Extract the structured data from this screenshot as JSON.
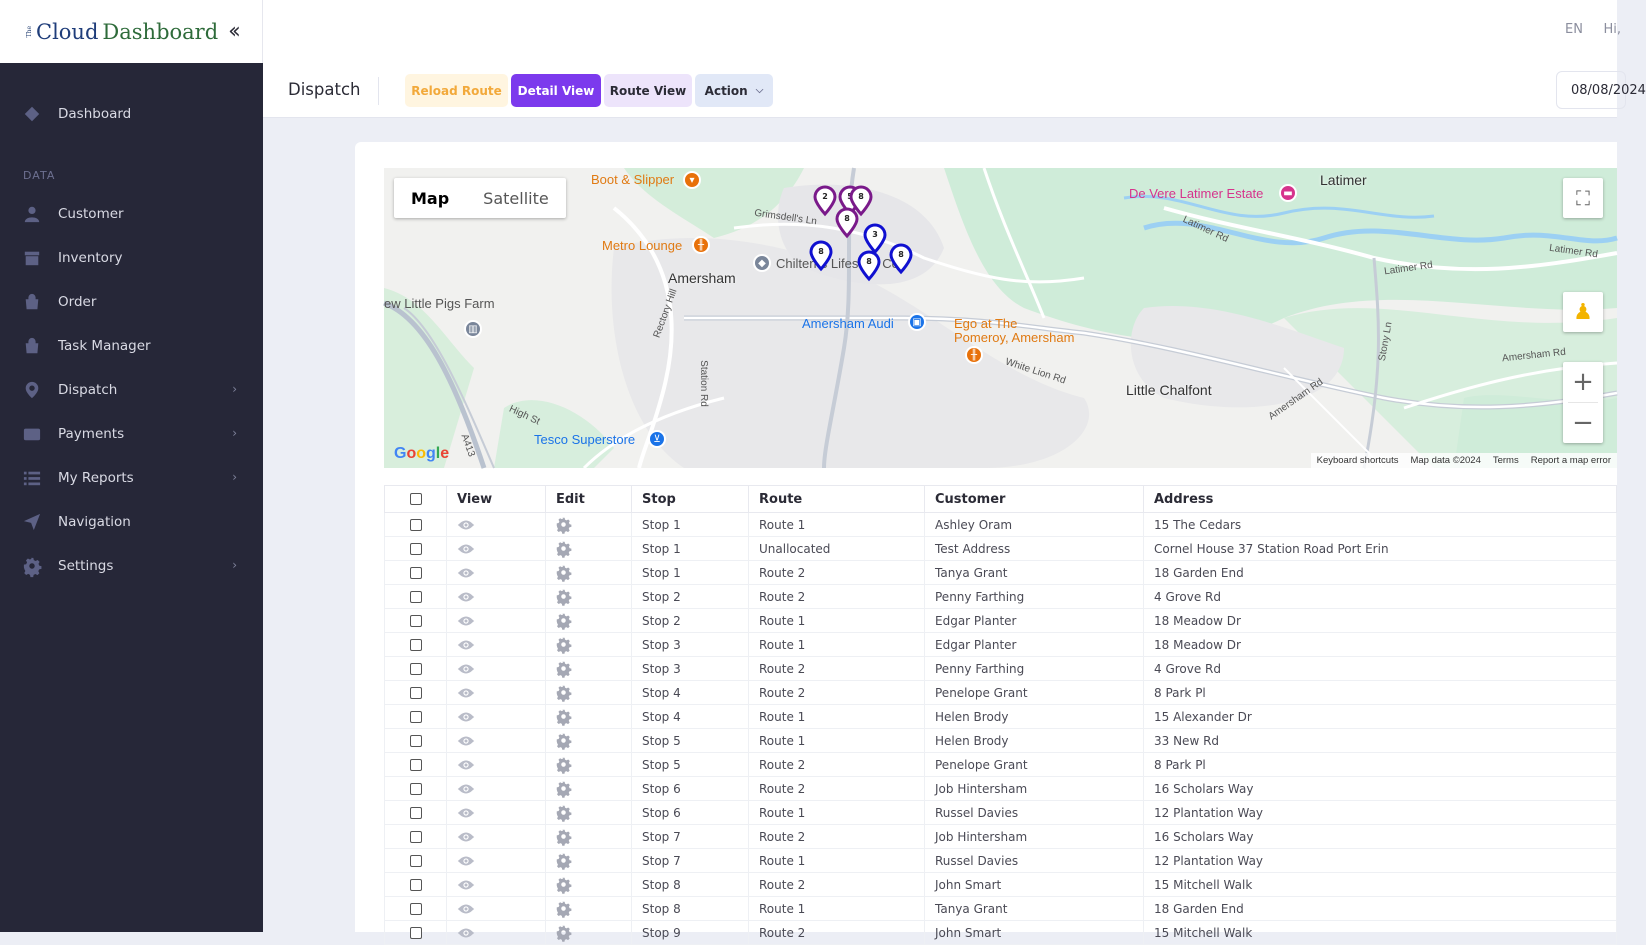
{
  "brand": {
    "prefix": "The",
    "name_part1": "Cloud",
    "name_part2": "Dashboard",
    "collapse_icon": "double-chevron-left-icon"
  },
  "header": {
    "language": "EN",
    "greeting": "Hi,"
  },
  "sidebar": {
    "items": [
      {
        "label": "Dashboard",
        "icon": "diamond-icon"
      },
      {
        "label": "Customer",
        "icon": "user-icon"
      },
      {
        "label": "Inventory",
        "icon": "box-icon"
      },
      {
        "label": "Order",
        "icon": "bag-icon"
      },
      {
        "label": "Task Manager",
        "icon": "bag-icon"
      },
      {
        "label": "Dispatch",
        "icon": "map-pin-icon"
      },
      {
        "label": "Payments",
        "icon": "wallet-icon"
      },
      {
        "label": "My Reports",
        "icon": "list-icon"
      },
      {
        "label": "Navigation",
        "icon": "send-icon"
      },
      {
        "label": "Settings",
        "icon": "gear-icon"
      }
    ],
    "section_data": "DATA"
  },
  "toolbar": {
    "title": "Dispatch",
    "reload_label": "Reload Route",
    "detail_label": "Detail View",
    "route_label": "Route View",
    "action_label": "Action",
    "date_value": "08/08/2024"
  },
  "map": {
    "type_map": "Map",
    "type_satellite": "Satellite",
    "google": "Google",
    "attribution": [
      "Keyboard shortcuts",
      "Map data ©2024",
      "Terms",
      "Report a map error"
    ],
    "places": {
      "latimer": "Latimer",
      "amersham": "Amersham",
      "little_chalfont": "Little Chalfont",
      "boot_slipper": "Boot & Slipper",
      "metro_lounge": "Metro Lounge",
      "de_vere": "De Vere Latimer Estate",
      "chilterns": "Chilterns Lifestyle Cen",
      "amersham_audi": "Amersham Audi",
      "ego_1": "Ego at The",
      "ego_2": "Pomeroy, Amersham",
      "tesco": "Tesco Superstore",
      "little_pigs": "ew Little Pigs Farm",
      "grimsdells": "Grimsdell's Ln",
      "latimer_rd1": "Latimer Rd",
      "latimer_rd2": "Latimer Rd",
      "latimer_rd3": "Latimer Rd",
      "rectory": "Rectory Hill",
      "station": "Station Rd",
      "white_lion": "White Lion Rd",
      "high_st": "High St",
      "a413": "A413",
      "amersham_rd1": "Amersham Rd",
      "amersham_rd2": "Amersham Rd",
      "stony": "Stony Ln"
    },
    "pins": [
      {
        "label": "2",
        "color": "#7a1a8a"
      },
      {
        "label": "5",
        "color": "#7a1a8a"
      },
      {
        "label": "8",
        "color": "#7a1a8a"
      },
      {
        "label": "8",
        "color": "#7a1a8a"
      },
      {
        "label": "3",
        "color": "#1010d0"
      },
      {
        "label": "8",
        "color": "#1010d0"
      },
      {
        "label": "8",
        "color": "#1010d0"
      },
      {
        "label": "8",
        "color": "#1010d0"
      }
    ]
  },
  "table": {
    "headers": [
      "View",
      "Edit",
      "Stop",
      "Route",
      "Customer",
      "Address"
    ],
    "rows": [
      {
        "stop": "Stop 1",
        "route": "Route 1",
        "customer": "Ashley Oram",
        "address": "15 The Cedars"
      },
      {
        "stop": "Stop 1",
        "route": "Unallocated",
        "customer": "Test Address",
        "address": "Cornel House 37 Station Road Port Erin"
      },
      {
        "stop": "Stop 1",
        "route": "Route 2",
        "customer": "Tanya Grant",
        "address": "18 Garden End"
      },
      {
        "stop": "Stop 2",
        "route": "Route 2",
        "customer": "Penny Farthing",
        "address": "4 Grove Rd"
      },
      {
        "stop": "Stop 2",
        "route": "Route 1",
        "customer": "Edgar Planter",
        "address": "18 Meadow Dr"
      },
      {
        "stop": "Stop 3",
        "route": "Route 1",
        "customer": "Edgar Planter",
        "address": "18 Meadow Dr"
      },
      {
        "stop": "Stop 3",
        "route": "Route 2",
        "customer": "Penny Farthing",
        "address": "4 Grove Rd"
      },
      {
        "stop": "Stop 4",
        "route": "Route 2",
        "customer": "Penelope Grant",
        "address": "8 Park Pl"
      },
      {
        "stop": "Stop 4",
        "route": "Route 1",
        "customer": "Helen Brody",
        "address": "15 Alexander Dr"
      },
      {
        "stop": "Stop 5",
        "route": "Route 1",
        "customer": "Helen Brody",
        "address": "33 New Rd"
      },
      {
        "stop": "Stop 5",
        "route": "Route 2",
        "customer": "Penelope Grant",
        "address": "8 Park Pl"
      },
      {
        "stop": "Stop 6",
        "route": "Route 2",
        "customer": "Job Hintersham",
        "address": "16 Scholars Way"
      },
      {
        "stop": "Stop 6",
        "route": "Route 1",
        "customer": "Russel Davies",
        "address": "12 Plantation Way"
      },
      {
        "stop": "Stop 7",
        "route": "Route 2",
        "customer": "Job Hintersham",
        "address": "16 Scholars Way"
      },
      {
        "stop": "Stop 7",
        "route": "Route 1",
        "customer": "Russel Davies",
        "address": "12 Plantation Way"
      },
      {
        "stop": "Stop 8",
        "route": "Route 2",
        "customer": "John Smart",
        "address": "15 Mitchell Walk"
      },
      {
        "stop": "Stop 8",
        "route": "Route 1",
        "customer": "Tanya Grant",
        "address": "18 Garden End"
      },
      {
        "stop": "Stop 9",
        "route": "Route 2",
        "customer": "John Smart",
        "address": "15 Mitchell Walk"
      }
    ]
  }
}
